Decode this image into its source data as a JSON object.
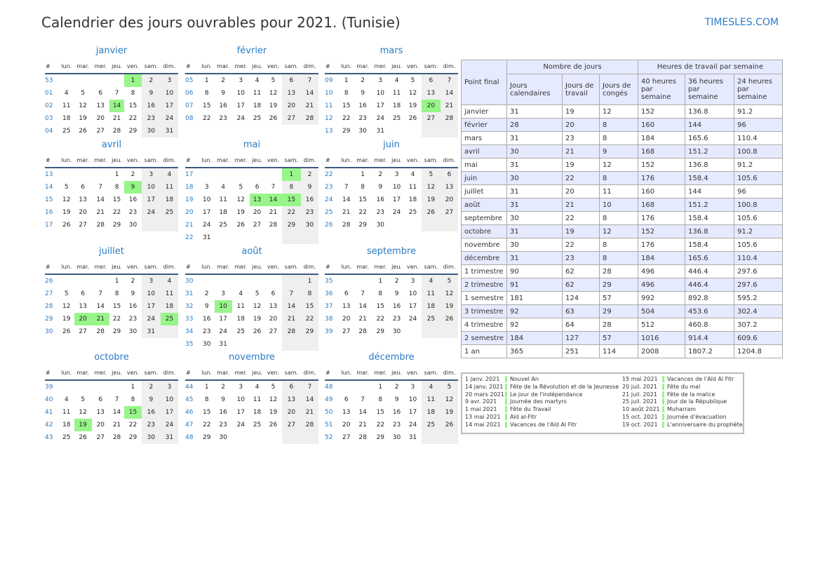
{
  "title": "Calendrier des jours ouvrables pour 2021. (Tunisie)",
  "site": "TIMESLES.COM",
  "colors": {
    "holiday": "#98f58a",
    "weekend": "#efefef",
    "accent": "#2a7bc4",
    "header": "#e6eaff"
  },
  "weekdays": [
    "#",
    "lun.",
    "mar.",
    "mer.",
    "jeu.",
    "ven.",
    "sam.",
    "dim."
  ],
  "months": [
    {
      "name": "janvier",
      "holidays": [
        1,
        14
      ],
      "weeks": [
        [
          "53",
          null,
          null,
          null,
          null,
          1,
          2,
          3
        ],
        [
          "01",
          4,
          5,
          6,
          7,
          8,
          9,
          10
        ],
        [
          "02",
          11,
          12,
          13,
          14,
          15,
          16,
          17
        ],
        [
          "03",
          18,
          19,
          20,
          21,
          22,
          23,
          24
        ],
        [
          "04",
          25,
          26,
          27,
          28,
          29,
          30,
          31
        ]
      ]
    },
    {
      "name": "février",
      "holidays": [],
      "weeks": [
        [
          "05",
          1,
          2,
          3,
          4,
          5,
          6,
          7
        ],
        [
          "06",
          8,
          9,
          10,
          11,
          12,
          13,
          14
        ],
        [
          "07",
          15,
          16,
          17,
          18,
          19,
          20,
          21
        ],
        [
          "08",
          22,
          23,
          24,
          25,
          26,
          27,
          28
        ]
      ]
    },
    {
      "name": "mars",
      "holidays": [
        20
      ],
      "weeks": [
        [
          "09",
          1,
          2,
          3,
          4,
          5,
          6,
          7
        ],
        [
          "10",
          8,
          9,
          10,
          11,
          12,
          13,
          14
        ],
        [
          "11",
          15,
          16,
          17,
          18,
          19,
          20,
          21
        ],
        [
          "12",
          22,
          23,
          24,
          25,
          26,
          27,
          28
        ],
        [
          "13",
          29,
          30,
          31,
          null,
          null,
          null,
          null
        ]
      ]
    },
    {
      "name": "avril",
      "holidays": [
        9
      ],
      "weeks": [
        [
          "13",
          null,
          null,
          null,
          1,
          2,
          3,
          4
        ],
        [
          "14",
          5,
          6,
          7,
          8,
          9,
          10,
          11
        ],
        [
          "15",
          12,
          13,
          14,
          15,
          16,
          17,
          18
        ],
        [
          "16",
          19,
          20,
          21,
          22,
          23,
          24,
          25
        ],
        [
          "17",
          26,
          27,
          28,
          29,
          30,
          null,
          null
        ]
      ]
    },
    {
      "name": "mai",
      "holidays": [
        1,
        13,
        14,
        15
      ],
      "weeks": [
        [
          "17",
          null,
          null,
          null,
          null,
          null,
          1,
          2
        ],
        [
          "18",
          3,
          4,
          5,
          6,
          7,
          8,
          9
        ],
        [
          "19",
          10,
          11,
          12,
          13,
          14,
          15,
          16
        ],
        [
          "20",
          17,
          18,
          19,
          20,
          21,
          22,
          23
        ],
        [
          "21",
          24,
          25,
          26,
          27,
          28,
          29,
          30
        ],
        [
          "22",
          31,
          null,
          null,
          null,
          null,
          null,
          null
        ]
      ]
    },
    {
      "name": "juin",
      "holidays": [],
      "weeks": [
        [
          "22",
          null,
          1,
          2,
          3,
          4,
          5,
          6
        ],
        [
          "23",
          7,
          8,
          9,
          10,
          11,
          12,
          13
        ],
        [
          "24",
          14,
          15,
          16,
          17,
          18,
          19,
          20
        ],
        [
          "25",
          21,
          22,
          23,
          24,
          25,
          26,
          27
        ],
        [
          "26",
          28,
          29,
          30,
          null,
          null,
          null,
          null
        ]
      ]
    },
    {
      "name": "juillet",
      "holidays": [
        20,
        21,
        25
      ],
      "weeks": [
        [
          "26",
          null,
          null,
          null,
          1,
          2,
          3,
          4
        ],
        [
          "27",
          5,
          6,
          7,
          8,
          9,
          10,
          11
        ],
        [
          "28",
          12,
          13,
          14,
          15,
          16,
          17,
          18
        ],
        [
          "29",
          19,
          20,
          21,
          22,
          23,
          24,
          25
        ],
        [
          "30",
          26,
          27,
          28,
          29,
          30,
          31,
          null
        ]
      ]
    },
    {
      "name": "août",
      "holidays": [
        10
      ],
      "weeks": [
        [
          "30",
          null,
          null,
          null,
          null,
          null,
          null,
          1
        ],
        [
          "31",
          2,
          3,
          4,
          5,
          6,
          7,
          8
        ],
        [
          "32",
          9,
          10,
          11,
          12,
          13,
          14,
          15
        ],
        [
          "33",
          16,
          17,
          18,
          19,
          20,
          21,
          22
        ],
        [
          "34",
          23,
          24,
          25,
          26,
          27,
          28,
          29
        ],
        [
          "35",
          30,
          31,
          null,
          null,
          null,
          null,
          null
        ]
      ]
    },
    {
      "name": "septembre",
      "holidays": [],
      "weeks": [
        [
          "35",
          null,
          null,
          1,
          2,
          3,
          4,
          5
        ],
        [
          "36",
          6,
          7,
          8,
          9,
          10,
          11,
          12
        ],
        [
          "37",
          13,
          14,
          15,
          16,
          17,
          18,
          19
        ],
        [
          "38",
          20,
          21,
          22,
          23,
          24,
          25,
          26
        ],
        [
          "39",
          27,
          28,
          29,
          30,
          null,
          null,
          null
        ]
      ]
    },
    {
      "name": "octobre",
      "holidays": [
        15,
        19
      ],
      "weeks": [
        [
          "39",
          null,
          null,
          null,
          null,
          1,
          2,
          3
        ],
        [
          "40",
          4,
          5,
          6,
          7,
          8,
          9,
          10
        ],
        [
          "41",
          11,
          12,
          13,
          14,
          15,
          16,
          17
        ],
        [
          "42",
          18,
          19,
          20,
          21,
          22,
          23,
          24
        ],
        [
          "43",
          25,
          26,
          27,
          28,
          29,
          30,
          31
        ]
      ]
    },
    {
      "name": "novembre",
      "holidays": [],
      "weeks": [
        [
          "44",
          1,
          2,
          3,
          4,
          5,
          6,
          7
        ],
        [
          "45",
          8,
          9,
          10,
          11,
          12,
          13,
          14
        ],
        [
          "46",
          15,
          16,
          17,
          18,
          19,
          20,
          21
        ],
        [
          "47",
          22,
          23,
          24,
          25,
          26,
          27,
          28
        ],
        [
          "48",
          29,
          30,
          null,
          null,
          null,
          null,
          null
        ]
      ]
    },
    {
      "name": "décembre",
      "holidays": [],
      "weeks": [
        [
          "48",
          null,
          null,
          1,
          2,
          3,
          4,
          5
        ],
        [
          "49",
          6,
          7,
          8,
          9,
          10,
          11,
          12
        ],
        [
          "50",
          13,
          14,
          15,
          16,
          17,
          18,
          19
        ],
        [
          "51",
          20,
          21,
          22,
          23,
          24,
          25,
          26
        ],
        [
          "52",
          27,
          28,
          29,
          30,
          31,
          null,
          null
        ]
      ]
    }
  ],
  "stats": {
    "headers": {
      "point": "Point final",
      "days_group": "Nombre de jours",
      "hours_group": "Heures de travail par semaine",
      "cols": [
        "Jours calendaires",
        "Jours de travail",
        "Jours de congés",
        "40 heures par semaine",
        "36 heures par semaine",
        "24 heures par semaine"
      ]
    },
    "rows": [
      [
        "janvier",
        "31",
        "19",
        "12",
        "152",
        "136.8",
        "91.2"
      ],
      [
        "février",
        "28",
        "20",
        "8",
        "160",
        "144",
        "96"
      ],
      [
        "mars",
        "31",
        "23",
        "8",
        "184",
        "165.6",
        "110.4"
      ],
      [
        "avril",
        "30",
        "21",
        "9",
        "168",
        "151.2",
        "100.8"
      ],
      [
        "mai",
        "31",
        "19",
        "12",
        "152",
        "136.8",
        "91.2"
      ],
      [
        "juin",
        "30",
        "22",
        "8",
        "176",
        "158.4",
        "105.6"
      ],
      [
        "juillet",
        "31",
        "20",
        "11",
        "160",
        "144",
        "96"
      ],
      [
        "août",
        "31",
        "21",
        "10",
        "168",
        "151.2",
        "100.8"
      ],
      [
        "septembre",
        "30",
        "22",
        "8",
        "176",
        "158.4",
        "105.6"
      ],
      [
        "octobre",
        "31",
        "19",
        "12",
        "152",
        "136.8",
        "91.2"
      ],
      [
        "novembre",
        "30",
        "22",
        "8",
        "176",
        "158.4",
        "105.6"
      ],
      [
        "décembre",
        "31",
        "23",
        "8",
        "184",
        "165.6",
        "110.4"
      ],
      [
        "1 trimestre",
        "90",
        "62",
        "28",
        "496",
        "446.4",
        "297.6"
      ],
      [
        "2 trimestre",
        "91",
        "62",
        "29",
        "496",
        "446.4",
        "297.6"
      ],
      [
        "1 semestre",
        "181",
        "124",
        "57",
        "992",
        "892.8",
        "595.2"
      ],
      [
        "3 trimestre",
        "92",
        "63",
        "29",
        "504",
        "453.6",
        "302.4"
      ],
      [
        "4 trimestre",
        "92",
        "64",
        "28",
        "512",
        "460.8",
        "307.2"
      ],
      [
        "2 semestre",
        "184",
        "127",
        "57",
        "1016",
        "914.4",
        "609.6"
      ],
      [
        "1 an",
        "365",
        "251",
        "114",
        "2008",
        "1807.2",
        "1204.8"
      ]
    ]
  },
  "holidays": [
    {
      "date": "1 janv. 2021",
      "name": "Nouvel An"
    },
    {
      "date": "14 janv. 2021",
      "name": "Fête de la Révolution et de la Jeunesse"
    },
    {
      "date": "20 mars 2021",
      "name": "Le jour de l'indépendance"
    },
    {
      "date": "9 avr. 2021",
      "name": "Journée des martyrs"
    },
    {
      "date": "1 mai 2021",
      "name": "Fête du Travail"
    },
    {
      "date": "13 mai 2021",
      "name": "Aïd al-Fitr"
    },
    {
      "date": "14 mai 2021",
      "name": "Vacances de l'Aïd Al Fitr"
    },
    {
      "date": "15 mai 2021",
      "name": "Vacances de l'Aïd Al Fitr"
    },
    {
      "date": "20 juil. 2021",
      "name": "Fête du mal"
    },
    {
      "date": "21 juil. 2021",
      "name": "Fête de la malice"
    },
    {
      "date": "25 juil. 2021",
      "name": "Jour de la République"
    },
    {
      "date": "10 août 2021",
      "name": "Muharram"
    },
    {
      "date": "15 oct. 2021",
      "name": "Journée d'évacuation"
    },
    {
      "date": "19 oct. 2021",
      "name": "L'anniversaire du prophète"
    }
  ]
}
